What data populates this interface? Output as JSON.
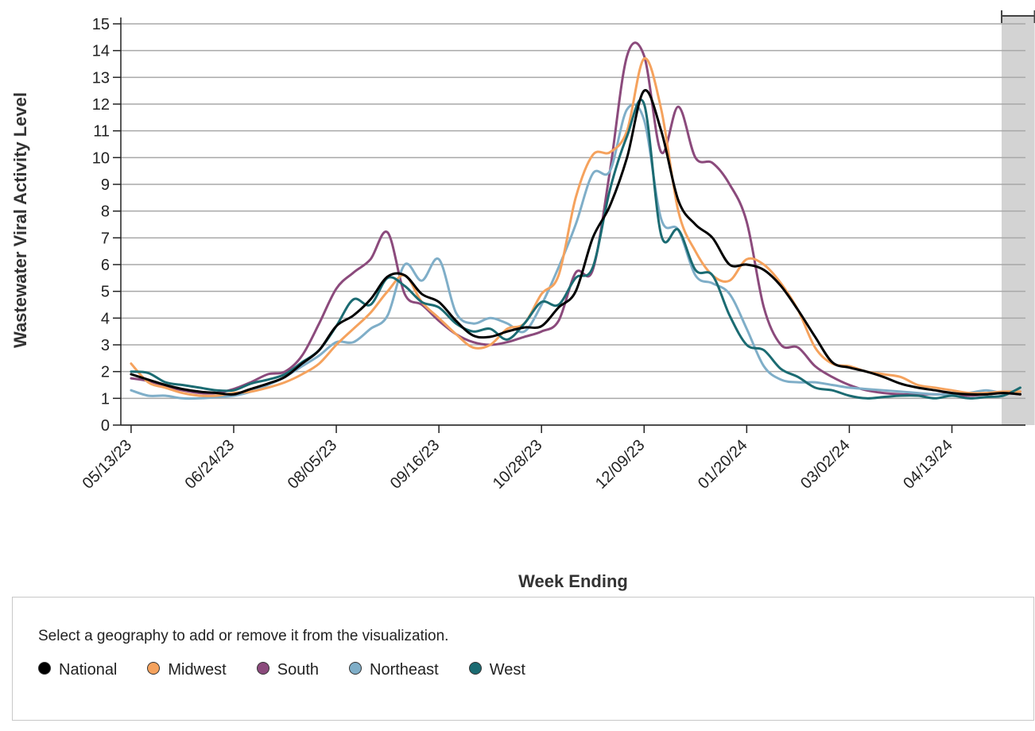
{
  "chart_data": {
    "type": "line",
    "title": "",
    "xlabel": "Week Ending",
    "ylabel": "Wastewater Viral Activity Level",
    "ylim": [
      0,
      15
    ],
    "yticks": [
      "0",
      "1",
      "2",
      "3",
      "4",
      "5",
      "6",
      "7",
      "8",
      "9",
      "10",
      "11",
      "12",
      "13",
      "14",
      "15"
    ],
    "xticks": [
      {
        "label": "05/13/23",
        "week": 0
      },
      {
        "label": "06/24/23",
        "week": 6
      },
      {
        "label": "08/05/23",
        "week": 12
      },
      {
        "label": "09/16/23",
        "week": 18
      },
      {
        "label": "10/28/23",
        "week": 24
      },
      {
        "label": "12/09/23",
        "week": 30
      },
      {
        "label": "01/20/24",
        "week": 36
      },
      {
        "label": "03/02/24",
        "week": 42
      },
      {
        "label": "04/13/24",
        "week": 48
      }
    ],
    "xdomain": [
      -0.6,
      52.3
    ],
    "provisional_range": [
      51,
      52
    ],
    "series": [
      {
        "name": "National",
        "color": "#000000",
        "values": [
          1.9,
          1.7,
          1.5,
          1.35,
          1.25,
          1.2,
          1.15,
          1.35,
          1.55,
          1.8,
          2.3,
          2.8,
          3.7,
          4.1,
          4.7,
          5.55,
          5.6,
          4.9,
          4.6,
          3.9,
          3.35,
          3.3,
          3.5,
          3.65,
          3.7,
          4.4,
          5.0,
          7.0,
          8.2,
          10.0,
          12.5,
          11.0,
          8.4,
          7.5,
          7.0,
          6.0,
          6.0,
          5.8,
          5.2,
          4.3,
          3.3,
          2.35,
          2.15,
          2.0,
          1.8,
          1.55,
          1.4,
          1.3,
          1.2,
          1.15,
          1.15,
          1.2,
          1.15
        ]
      },
      {
        "name": "Midwest",
        "color": "#f5a25d",
        "values": [
          2.3,
          1.6,
          1.4,
          1.2,
          1.1,
          1.1,
          1.2,
          1.25,
          1.4,
          1.6,
          1.9,
          2.3,
          3.0,
          3.6,
          4.2,
          5.0,
          5.6,
          4.6,
          4.0,
          3.4,
          2.9,
          3.0,
          3.6,
          3.8,
          4.9,
          5.6,
          8.5,
          10.1,
          10.2,
          11.0,
          13.7,
          11.8,
          8.0,
          6.5,
          5.6,
          5.4,
          6.2,
          6.0,
          5.3,
          4.3,
          2.9,
          2.3,
          2.2,
          2.0,
          1.9,
          1.8,
          1.5,
          1.4,
          1.3,
          1.2,
          1.2,
          1.25,
          1.25
        ]
      },
      {
        "name": "South",
        "color": "#8b4a7c",
        "values": [
          1.75,
          1.65,
          1.45,
          1.3,
          1.2,
          1.2,
          1.35,
          1.6,
          1.9,
          2.0,
          2.6,
          3.8,
          5.1,
          5.7,
          6.2,
          7.2,
          4.9,
          4.5,
          3.9,
          3.4,
          3.1,
          3.0,
          3.1,
          3.3,
          3.5,
          3.9,
          5.7,
          5.8,
          9.5,
          13.8,
          13.8,
          10.2,
          11.9,
          10.0,
          9.8,
          9.0,
          7.6,
          4.4,
          3.0,
          2.9,
          2.2,
          1.8,
          1.5,
          1.3,
          1.2,
          1.15,
          1.15,
          1.15,
          1.15,
          1.1,
          1.15,
          1.2,
          1.15
        ]
      },
      {
        "name": "Northeast",
        "color": "#7faec8",
        "values": [
          1.3,
          1.1,
          1.1,
          1.0,
          1.0,
          1.05,
          1.1,
          1.25,
          1.5,
          1.8,
          2.2,
          2.6,
          3.1,
          3.1,
          3.6,
          4.1,
          6.0,
          5.4,
          6.2,
          4.2,
          3.8,
          4.0,
          3.8,
          3.5,
          4.5,
          5.9,
          7.5,
          9.4,
          9.5,
          11.8,
          11.4,
          7.7,
          7.3,
          5.6,
          5.3,
          4.9,
          3.6,
          2.2,
          1.7,
          1.6,
          1.6,
          1.5,
          1.4,
          1.35,
          1.3,
          1.25,
          1.2,
          1.15,
          1.15,
          1.2,
          1.3,
          1.2,
          1.25
        ]
      },
      {
        "name": "West",
        "color": "#1b6b72",
        "values": [
          2.0,
          1.95,
          1.6,
          1.5,
          1.4,
          1.3,
          1.3,
          1.55,
          1.7,
          1.9,
          2.35,
          2.8,
          3.7,
          4.7,
          4.5,
          5.5,
          5.2,
          4.6,
          4.4,
          3.8,
          3.5,
          3.6,
          3.2,
          3.8,
          4.6,
          4.5,
          5.5,
          5.9,
          8.8,
          10.8,
          12.0,
          7.1,
          7.3,
          5.8,
          5.6,
          4.1,
          3.0,
          2.8,
          2.1,
          1.8,
          1.4,
          1.3,
          1.1,
          1.0,
          1.05,
          1.1,
          1.1,
          1.0,
          1.1,
          1.0,
          1.05,
          1.1,
          1.4
        ]
      }
    ]
  },
  "legend": {
    "instruction": "Select a geography to add or remove it from the visualization.",
    "items": [
      {
        "label": "National",
        "color": "#000000"
      },
      {
        "label": "Midwest",
        "color": "#f5a25d"
      },
      {
        "label": "South",
        "color": "#8b4a7c"
      },
      {
        "label": "Northeast",
        "color": "#7faec8"
      },
      {
        "label": "West",
        "color": "#1b6b72"
      }
    ]
  }
}
